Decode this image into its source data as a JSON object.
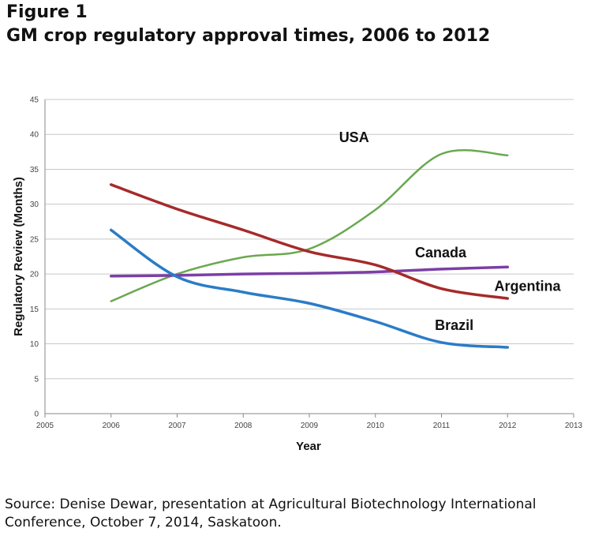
{
  "figure": {
    "label": "Figure 1",
    "title": "GM crop regulatory approval times, 2006 to 2012"
  },
  "source": {
    "line1": "Source: Denise Dewar, presentation at Agricultural Biotechnology International",
    "line2": "Conference, October 7, 2014, Saskatoon."
  },
  "chart_data": {
    "type": "line",
    "xlabel": "Year",
    "ylabel": "Regulatory Review (Months)",
    "xlim": [
      2005,
      2013
    ],
    "ylim": [
      0,
      45
    ],
    "xticks": [
      2005,
      2006,
      2007,
      2008,
      2009,
      2010,
      2011,
      2012,
      2013
    ],
    "yticks": [
      0,
      5,
      10,
      15,
      20,
      25,
      30,
      35,
      40,
      45
    ],
    "grid": "horizontal",
    "series": [
      {
        "name": "USA",
        "color": "#6aa84f",
        "x": [
          2006,
          2007,
          2008,
          2009,
          2010,
          2011,
          2012
        ],
        "y": [
          16.1,
          20.0,
          22.4,
          23.6,
          29.2,
          37.2,
          37.0
        ]
      },
      {
        "name": "Canada",
        "color": "#7b3fa6",
        "x": [
          2006,
          2007,
          2008,
          2009,
          2010,
          2011,
          2012
        ],
        "y": [
          19.7,
          19.8,
          20.0,
          20.1,
          20.3,
          20.7,
          21.0
        ]
      },
      {
        "name": "Argentina",
        "color": "#a62a2a",
        "x": [
          2006,
          2007,
          2008,
          2009,
          2010,
          2011,
          2012
        ],
        "y": [
          32.8,
          29.3,
          26.3,
          23.2,
          21.3,
          17.9,
          16.5
        ]
      },
      {
        "name": "Brazil",
        "color": "#2a7cc7",
        "x": [
          2006,
          2007,
          2008,
          2009,
          2010,
          2011,
          2012
        ],
        "y": [
          26.3,
          19.6,
          17.4,
          15.8,
          13.2,
          10.2,
          9.5
        ]
      }
    ]
  }
}
